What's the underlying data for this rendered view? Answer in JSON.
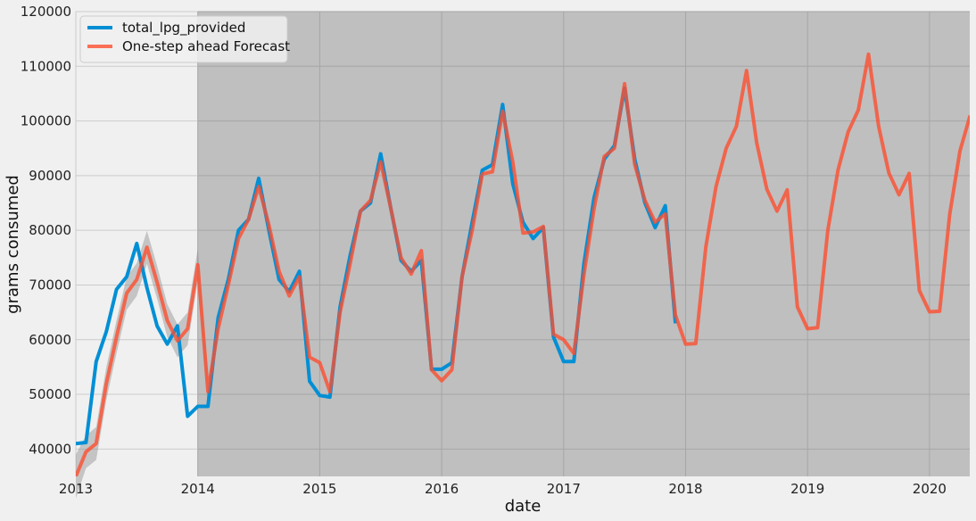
{
  "chart_data": {
    "type": "line",
    "xlabel": "date",
    "ylabel": "grams consumed",
    "xlim": [
      2013.0,
      2020.33
    ],
    "ylim": [
      35000,
      120000
    ],
    "grid": true,
    "legend_placement": "top-left",
    "shaded_region_start": 2014.0,
    "x_ticks": [
      2013,
      2014,
      2015,
      2016,
      2017,
      2018,
      2019,
      2020
    ],
    "x_tick_labels": [
      "2013",
      "2014",
      "2015",
      "2016",
      "2017",
      "2018",
      "2019",
      "2020"
    ],
    "y_ticks": [
      40000,
      50000,
      60000,
      70000,
      80000,
      90000,
      100000,
      110000,
      120000
    ],
    "y_tick_labels": [
      "40000",
      "50000",
      "60000",
      "70000",
      "80000",
      "90000",
      "100000",
      "110000",
      "120000"
    ],
    "series": [
      {
        "name": "total_lpg_provided",
        "color": "#008fd5",
        "x_start": 2013.0,
        "x_step": 0.08333,
        "values": [
          41000,
          41200,
          56000,
          61500,
          69200,
          71500,
          77600,
          69500,
          62500,
          59200,
          62500,
          46000,
          47800,
          47800,
          64000,
          71000,
          80000,
          82000,
          89500,
          80000,
          71000,
          68800,
          72500,
          52400,
          49800,
          49500,
          66000,
          75500,
          83500,
          85000,
          94000,
          84000,
          74500,
          72500,
          74500,
          54600,
          54600,
          55800,
          71500,
          81500,
          91000,
          92000,
          103000,
          88500,
          81500,
          78500,
          80500,
          60500,
          56000,
          56000,
          74000,
          86000,
          93000,
          95500,
          106000,
          93000,
          85000,
          80500,
          84500,
          63000
        ]
      },
      {
        "name": "One-step ahead Forecast",
        "color": "#fc4f30",
        "x_start": 2013.0,
        "x_step": 0.08333,
        "values": [
          35000,
          39500,
          41000,
          52000,
          60500,
          68500,
          71000,
          76900,
          70500,
          63500,
          59800,
          62000,
          73700,
          50500,
          62000,
          70000,
          78500,
          82000,
          88000,
          81000,
          72500,
          68000,
          71500,
          56800,
          55800,
          50500,
          65000,
          74000,
          83500,
          85500,
          92500,
          84000,
          75000,
          72000,
          76300,
          54500,
          52500,
          54500,
          71500,
          80000,
          90300,
          90700,
          101800,
          92500,
          79500,
          79700,
          80700,
          61000,
          60000,
          57500,
          72000,
          84000,
          93500,
          95000,
          106800,
          92000,
          85500,
          81500,
          83000,
          64500,
          59200,
          59300,
          77000,
          88000,
          95000,
          99000,
          109200,
          96000,
          87500,
          83500,
          87400,
          66000,
          62000,
          62200,
          80000,
          91000,
          98000,
          102000,
          112200,
          99000,
          90500,
          86500,
          90400,
          69000,
          65100,
          65200,
          83000,
          94500,
          101000
        ]
      }
    ],
    "confidence_band": {
      "x_start": 2013.0,
      "x_step": 0.08333,
      "lower": [
        31000,
        36500,
        38000,
        49000,
        57500,
        65500,
        68000,
        73900,
        67500,
        60500,
        56800,
        59000,
        70700,
        47500
      ],
      "upper": [
        39000,
        42500,
        44000,
        55000,
        63500,
        71500,
        74000,
        79900,
        73500,
        66500,
        62800,
        65000,
        76700,
        53500
      ]
    }
  }
}
